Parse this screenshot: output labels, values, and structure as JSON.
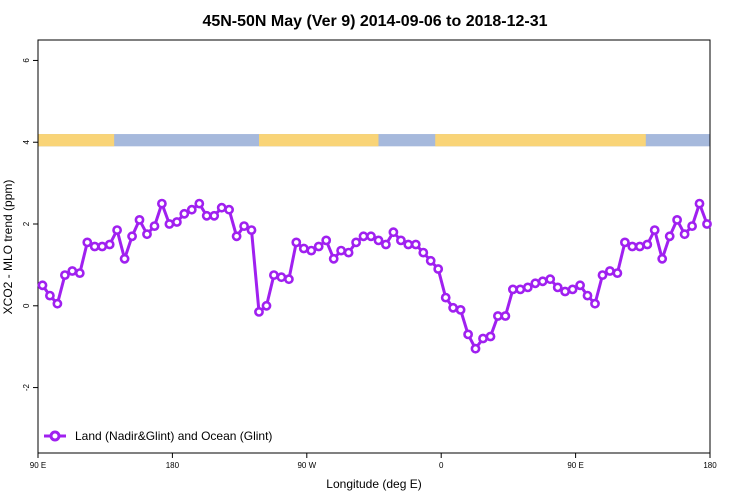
{
  "chart_data": {
    "type": "line",
    "title": "45N-50N May (Ver 9)   2014-09-06 to 2018-12-31",
    "xlabel": "Longitude (deg E)",
    "ylabel": "XCO2 - MLO trend (ppm)",
    "x_ticks": [
      {
        "value": 90,
        "label": "90 E"
      },
      {
        "value": 180,
        "label": "180"
      },
      {
        "value": 270,
        "label": "90 W"
      },
      {
        "value": 360,
        "label": "0"
      },
      {
        "value": 450,
        "label": "90 E"
      },
      {
        "value": 540,
        "label": "180"
      }
    ],
    "y_ticks": [
      {
        "value": -2,
        "label": "-2"
      },
      {
        "value": 0,
        "label": "0"
      },
      {
        "value": 2,
        "label": "2"
      },
      {
        "value": 4,
        "label": "4"
      },
      {
        "value": 6,
        "label": "6"
      }
    ],
    "xlim": [
      90,
      540
    ],
    "ylim": [
      -3.6,
      6.5
    ],
    "grid": false,
    "legend_position": "bottom-left",
    "series": [
      {
        "name": "Land (Nadir&Glint) and Ocean (Glint)",
        "color": "#a020f0",
        "x": [
          93,
          98,
          103,
          108,
          113,
          118,
          123,
          128,
          133,
          138,
          143,
          148,
          153,
          158,
          163,
          168,
          173,
          178,
          183,
          188,
          193,
          198,
          203,
          208,
          213,
          218,
          223,
          228,
          233,
          238,
          243,
          248,
          253,
          258,
          263,
          268,
          273,
          278,
          283,
          288,
          293,
          298,
          303,
          308,
          313,
          318,
          323,
          328,
          333,
          338,
          343,
          348,
          353,
          358,
          363,
          368,
          373,
          378,
          383,
          388,
          393,
          398,
          403,
          408,
          413,
          418,
          423,
          428,
          433,
          438,
          443,
          448,
          453,
          458,
          463,
          468,
          473,
          478,
          483,
          488,
          493,
          498,
          503,
          508,
          513,
          518,
          523,
          528,
          533,
          538
        ],
        "y": [
          0.5,
          0.25,
          0.05,
          0.75,
          0.85,
          0.8,
          1.55,
          1.45,
          1.45,
          1.5,
          1.85,
          1.15,
          1.7,
          2.1,
          1.75,
          1.95,
          2.5,
          2.0,
          2.05,
          2.25,
          2.35,
          2.5,
          2.2,
          2.2,
          2.4,
          2.35,
          1.7,
          1.95,
          1.85,
          -0.15,
          0.0,
          0.75,
          0.7,
          0.65,
          1.55,
          1.4,
          1.35,
          1.45,
          1.6,
          1.15,
          1.35,
          1.3,
          1.55,
          1.7,
          1.7,
          1.6,
          1.5,
          1.8,
          1.6,
          1.5,
          1.5,
          1.3,
          1.1,
          0.9,
          0.2,
          -0.05,
          -0.1,
          -0.7,
          -1.05,
          -0.8,
          -0.75,
          -0.25,
          -0.25,
          0.4,
          0.4,
          0.45,
          0.55,
          0.6,
          0.65,
          0.45,
          0.35,
          0.4,
          0.5,
          0.25,
          0.05,
          0.75,
          0.85,
          0.8,
          1.55,
          1.45,
          1.45,
          1.5,
          1.85,
          1.15,
          1.7,
          2.1,
          1.75,
          1.95,
          2.5,
          2.0
        ]
      }
    ],
    "surface_band": {
      "y_range": [
        3.9,
        4.2
      ],
      "land_color": "#f9d477",
      "ocean_color": "#a6b9dc",
      "land_segments": [
        [
          90,
          141
        ],
        [
          238,
          318
        ],
        [
          356,
          497
        ]
      ]
    }
  }
}
